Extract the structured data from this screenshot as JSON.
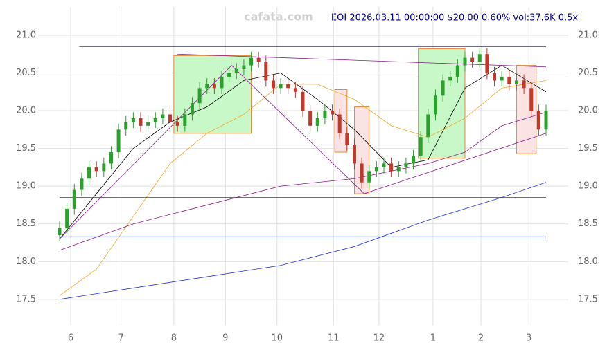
{
  "chart_data": {
    "type": "candlestick",
    "title": "EOI 2026.03.11 00:00:00 $20.00 0.60% vol:37.6K 0.5x",
    "watermark": "cafata.com",
    "xlim": [
      0,
      198
    ],
    "ylim": [
      17.15,
      21.4
    ],
    "xticks": [
      {
        "value": 4.5,
        "label": "6"
      },
      {
        "value": 25,
        "label": "7"
      },
      {
        "value": 46.5,
        "label": "8"
      },
      {
        "value": 67.5,
        "label": "9"
      },
      {
        "value": 88.5,
        "label": "10"
      },
      {
        "value": 111.5,
        "label": "11"
      },
      {
        "value": 130,
        "label": "12"
      },
      {
        "value": 152,
        "label": "1"
      },
      {
        "value": 171.5,
        "label": "2"
      },
      {
        "value": 191,
        "label": "3"
      }
    ],
    "yticks": [
      17.5,
      {
        "value": 18,
        "label": "18.0"
      },
      18.5,
      {
        "value": 19,
        "label": "19.0"
      },
      19.5,
      {
        "value": 20,
        "label": "20.0"
      },
      20.5,
      {
        "value": 21,
        "label": "21.0"
      }
    ],
    "grid": true,
    "up_color": "#2ca02c",
    "down_color": "#c0392b",
    "x": [
      0,
      3,
      6,
      9,
      12,
      15,
      18,
      21,
      24,
      27,
      30,
      33,
      36,
      39,
      42,
      45,
      48,
      51,
      54,
      57,
      60,
      63,
      66,
      69,
      72,
      75,
      78,
      81,
      84,
      87,
      90,
      93,
      96,
      99,
      102,
      105,
      108,
      111,
      114,
      117,
      120,
      123,
      126,
      129,
      132,
      135,
      138,
      141,
      144,
      147,
      150,
      153,
      156,
      159,
      162,
      165,
      168,
      171,
      174,
      177,
      180,
      183,
      186,
      189,
      192,
      195,
      198
    ],
    "open": [
      18.35,
      18.45,
      18.7,
      18.95,
      19.1,
      19.25,
      19.2,
      19.3,
      19.45,
      19.75,
      19.85,
      19.9,
      19.8,
      19.85,
      19.9,
      19.95,
      19.85,
      19.8,
      19.95,
      20.1,
      20.3,
      20.35,
      20.3,
      20.45,
      20.5,
      20.55,
      20.6,
      20.7,
      20.65,
      20.4,
      20.3,
      20.35,
      20.3,
      20.25,
      20.0,
      19.8,
      19.9,
      20.0,
      19.95,
      19.7,
      19.55,
      19.3,
      19.05,
      19.2,
      19.25,
      19.3,
      19.2,
      19.25,
      19.3,
      19.4,
      19.65,
      19.95,
      20.2,
      20.4,
      20.45,
      20.6,
      20.7,
      20.65,
      20.75,
      20.5,
      20.4,
      20.45,
      20.35,
      20.4,
      20.3,
      20.0,
      19.75
    ],
    "high": [
      18.53,
      18.78,
      19.03,
      19.18,
      19.33,
      19.33,
      19.38,
      19.53,
      19.83,
      19.93,
      19.98,
      19.98,
      19.93,
      19.98,
      20.03,
      20.03,
      19.93,
      20.03,
      20.18,
      20.38,
      20.43,
      20.43,
      20.53,
      20.58,
      20.63,
      20.68,
      20.78,
      20.78,
      20.73,
      20.48,
      20.43,
      20.43,
      20.38,
      20.33,
      20.08,
      19.98,
      20.08,
      20.08,
      20.03,
      19.78,
      19.63,
      19.38,
      19.28,
      19.33,
      19.38,
      19.38,
      19.33,
      19.38,
      19.48,
      19.73,
      20.03,
      20.28,
      20.48,
      20.53,
      20.68,
      20.78,
      20.78,
      20.83,
      20.83,
      20.58,
      20.53,
      20.53,
      20.48,
      20.48,
      20.38,
      20.08,
      20.08
    ],
    "low": [
      18.27,
      18.37,
      18.62,
      18.87,
      19.02,
      19.12,
      19.12,
      19.22,
      19.37,
      19.67,
      19.77,
      19.72,
      19.72,
      19.77,
      19.82,
      19.77,
      19.72,
      19.72,
      19.87,
      20.02,
      20.22,
      20.22,
      20.22,
      20.37,
      20.42,
      20.47,
      20.52,
      20.57,
      20.32,
      20.22,
      20.22,
      20.22,
      20.17,
      19.92,
      19.72,
      19.72,
      19.82,
      19.87,
      19.62,
      19.47,
      19.22,
      18.97,
      18.97,
      19.12,
      19.17,
      19.12,
      19.12,
      19.17,
      19.22,
      19.32,
      19.57,
      19.87,
      20.12,
      20.32,
      20.37,
      20.52,
      20.57,
      20.57,
      20.42,
      20.32,
      20.32,
      20.27,
      20.27,
      20.22,
      19.92,
      19.67,
      19.67
    ],
    "close": [
      18.45,
      18.7,
      18.95,
      19.1,
      19.25,
      19.2,
      19.3,
      19.45,
      19.75,
      19.85,
      19.9,
      19.8,
      19.85,
      19.9,
      19.95,
      19.85,
      19.8,
      19.95,
      20.1,
      20.3,
      20.35,
      20.3,
      20.45,
      20.5,
      20.55,
      20.6,
      20.7,
      20.65,
      20.4,
      20.3,
      20.35,
      20.3,
      20.25,
      20.0,
      19.8,
      19.9,
      20.0,
      19.95,
      19.7,
      19.55,
      19.3,
      19.05,
      19.2,
      19.25,
      19.3,
      19.2,
      19.25,
      19.3,
      19.4,
      19.65,
      19.95,
      20.2,
      20.4,
      20.45,
      20.6,
      20.7,
      20.65,
      20.75,
      20.5,
      20.4,
      20.45,
      20.35,
      20.4,
      20.3,
      20.0,
      19.75,
      20.0
    ],
    "lines": [
      {
        "color": "#000000",
        "x": [
          0,
          15,
          30,
          45,
          60,
          75,
          90,
          105,
          120,
          135,
          150,
          165,
          180,
          198
        ],
        "values": [
          18.3,
          18.9,
          19.5,
          19.85,
          20.05,
          20.4,
          20.5,
          20.15,
          19.75,
          19.25,
          19.35,
          20.3,
          20.6,
          20.25
        ]
      },
      {
        "color": "#f5a623",
        "x": [
          0,
          15,
          30,
          45,
          60,
          75,
          90,
          105,
          120,
          135,
          150,
          165,
          180,
          198
        ],
        "values": [
          17.55,
          17.9,
          18.6,
          19.3,
          19.7,
          19.95,
          20.35,
          20.35,
          20.15,
          19.8,
          19.65,
          19.9,
          20.3,
          20.4
        ]
      },
      {
        "color": "#8b1a8b",
        "x": [
          0,
          30,
          60,
          90,
          120,
          150,
          165,
          180,
          198
        ],
        "values": [
          18.15,
          18.5,
          18.75,
          19.0,
          19.1,
          19.3,
          19.45,
          19.8,
          19.98
        ]
      },
      {
        "color": "#2233dd",
        "x": [
          0,
          30,
          60,
          90,
          120,
          150,
          180,
          198
        ],
        "values": [
          17.5,
          17.65,
          17.8,
          17.95,
          18.2,
          18.55,
          18.85,
          19.05
        ]
      },
      {
        "color": "#2233dd",
        "x": [
          8,
          198
        ],
        "values": [
          20.85,
          20.85
        ]
      },
      {
        "color": "#2233dd",
        "x": [
          0,
          198
        ],
        "values": [
          18.85,
          18.85
        ]
      },
      {
        "color": "#2233dd",
        "x": [
          0,
          198
        ],
        "values": [
          18.33,
          18.33
        ]
      },
      {
        "color": "#2233dd",
        "x": [
          0,
          198
        ],
        "values": [
          18.3,
          18.3
        ]
      },
      {
        "color": "#8b1a8b",
        "x": [
          0,
          70,
          124,
          198
        ],
        "values": [
          18.3,
          20.6,
          18.9,
          19.7
        ]
      },
      {
        "color": "#8b1a8b",
        "x": [
          48,
          198
        ],
        "values": [
          20.75,
          20.58
        ]
      }
    ],
    "zones": [
      {
        "color": "#c8f7c8",
        "x": [
          46.5,
          78
        ],
        "values": [
          19.7,
          20.73
        ]
      },
      {
        "color": "#c8f7c8",
        "x": [
          146,
          165
        ],
        "values": [
          19.37,
          20.82
        ]
      },
      {
        "color": "#fbe3e3",
        "x": [
          112,
          117
        ],
        "values": [
          19.45,
          20.28
        ]
      },
      {
        "color": "#fbe3e3",
        "x": [
          120,
          126
        ],
        "values": [
          18.9,
          20.05
        ]
      },
      {
        "color": "#fbe3e3",
        "x": [
          186,
          194
        ],
        "values": [
          19.43,
          20.6
        ]
      }
    ]
  }
}
